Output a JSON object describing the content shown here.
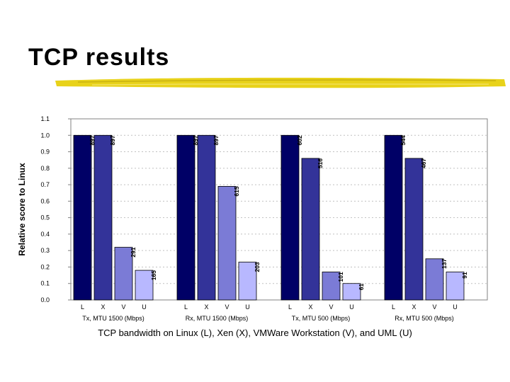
{
  "slide": {
    "title": "TCP results",
    "caption": "TCP bandwidth on Linux (L), Xen (X), VMWare Workstation (V), and UML (U)"
  },
  "colors": {
    "L": "#000066",
    "X": "#333399",
    "V": "#7b7bd6",
    "U": "#b8b8ff",
    "accent_brush": "#e8d21a"
  },
  "chart_data": {
    "type": "bar",
    "ylabel": "Relative score to Linux",
    "ylim": [
      0,
      1.1
    ],
    "yticks": [
      "0.0",
      "0.1",
      "0.2",
      "0.3",
      "0.4",
      "0.5",
      "0.6",
      "0.7",
      "0.8",
      "0.9",
      "1.0",
      "1.1"
    ],
    "series_keys": [
      "L",
      "X",
      "V",
      "U"
    ],
    "groups": [
      {
        "name": "Tx, MTU 1500 (Mbps)",
        "bar_labels": [
          "L",
          "X",
          "V",
          "U"
        ],
        "values": [
          1.0,
          1.0,
          0.32,
          0.18
        ],
        "data_labels": [
          "897",
          "897",
          "291",
          "165"
        ]
      },
      {
        "name": "Rx, MTU 1500 (Mbps)",
        "bar_labels": [
          "L",
          "X",
          "V",
          "U"
        ],
        "values": [
          1.0,
          1.0,
          0.69,
          0.23
        ],
        "data_labels": [
          "897",
          "897",
          "615",
          "203"
        ]
      },
      {
        "name": "Tx, MTU 500 (Mbps)",
        "bar_labels": [
          "L",
          "X",
          "V",
          "U"
        ],
        "values": [
          1.0,
          0.86,
          0.17,
          0.1
        ],
        "data_labels": [
          "602",
          "516",
          "101",
          "61"
        ]
      },
      {
        "name": "Rx, MTU 500 (Mbps)",
        "bar_labels": [
          "L",
          "X",
          "V",
          "U"
        ],
        "values": [
          1.0,
          0.86,
          0.25,
          0.17
        ],
        "data_labels": [
          "544",
          "467",
          "137",
          "91"
        ]
      }
    ]
  }
}
